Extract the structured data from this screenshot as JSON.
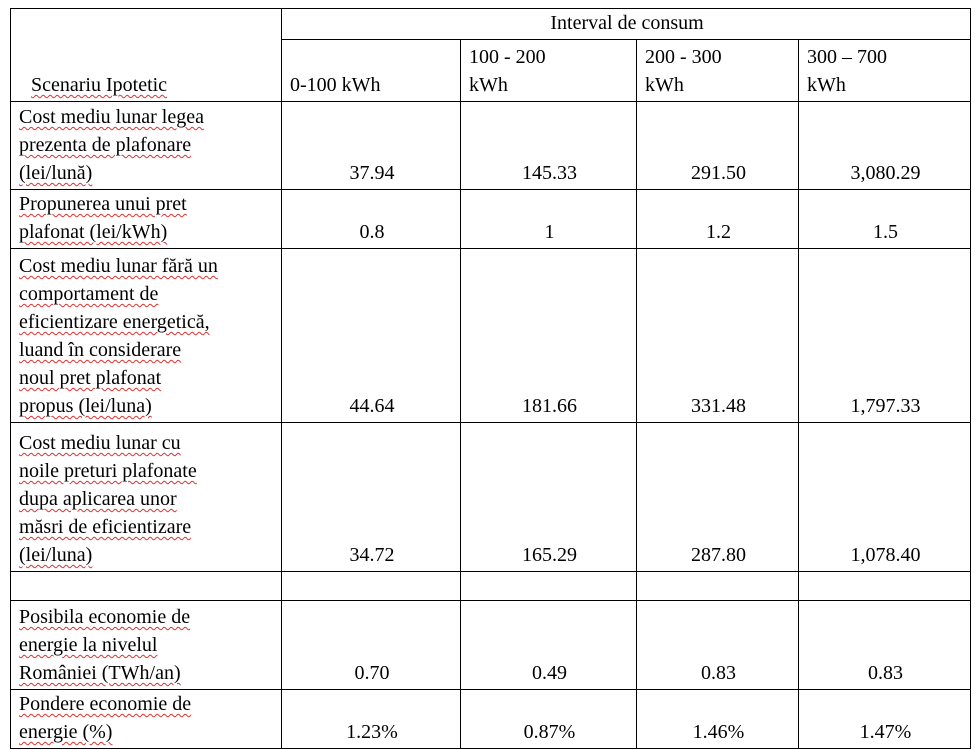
{
  "table": {
    "group_header": "Interval de consum",
    "corner": "Scenariu Ipotetic",
    "columns": [
      [
        "0-100 kWh"
      ],
      [
        "100 - 200",
        "kWh"
      ],
      [
        "200 - 300",
        "kWh"
      ],
      [
        "300 – 700",
        "kWh"
      ]
    ],
    "rows": [
      {
        "label": [
          "Cost mediu lunar legea",
          "prezenta de plafonare",
          "(lei/lună)"
        ],
        "values": [
          "37.94",
          "145.33",
          "291.50",
          "3,080.29"
        ]
      },
      {
        "label": [
          "Propunerea unui pret",
          "plafonat (lei/kWh)"
        ],
        "values": [
          "0.8",
          "1",
          "1.2",
          "1.5"
        ]
      },
      {
        "label": [
          "Cost mediu lunar fără un",
          "comportament de",
          "eficientizare energetică,",
          "luand în considerare",
          "noul pret plafonat",
          "propus (lei/luna)"
        ],
        "values": [
          "44.64",
          "181.66",
          "331.48",
          "1,797.33"
        ]
      },
      {
        "label": [
          "Cost mediu lunar cu",
          "noile preturi plafonate",
          "dupa aplicarea unor",
          "măsri de eficientizare",
          "(lei/luna)"
        ],
        "values": [
          "34.72",
          "165.29",
          "287.80",
          "1,078.40"
        ]
      },
      {
        "label": [
          "Posibila economie de",
          "energie la nivelul",
          "României (TWh/an)"
        ],
        "values": [
          "0.70",
          "0.49",
          "0.83",
          "0.83"
        ]
      },
      {
        "label": [
          "Pondere economie de",
          "energie (%)"
        ],
        "values": [
          "1.23%",
          "0.87%",
          "1.46%",
          "1.47%"
        ]
      }
    ]
  }
}
